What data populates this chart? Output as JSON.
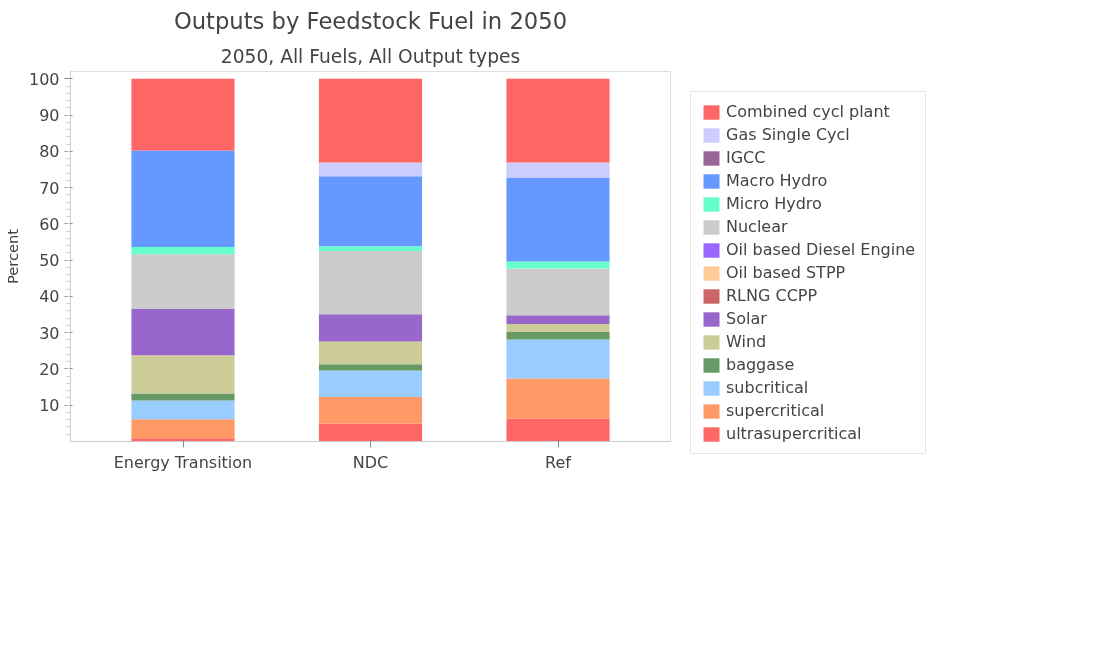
{
  "chart_data": {
    "type": "bar",
    "title": "Outputs by Feedstock Fuel in 2050",
    "subtitle": "2050, All Fuels, All Output types",
    "ylabel": "Percent",
    "categories": [
      "Energy Transition",
      "NDC",
      "Ref"
    ],
    "stacked": true,
    "ylim": [
      0,
      102
    ],
    "yticks": [
      10,
      20,
      30,
      40,
      50,
      60,
      70,
      80,
      90,
      100
    ],
    "grid": false,
    "legend": "right",
    "series": [
      {
        "name": "ultrasupercritical",
        "color": "#ff6666",
        "values": [
          0.9,
          4.9,
          6.3
        ]
      },
      {
        "name": "supercritical",
        "color": "#ff9966",
        "values": [
          5.2,
          7.4,
          11.1
        ]
      },
      {
        "name": "subcritical",
        "color": "#99ccff",
        "values": [
          5.2,
          7.3,
          10.7
        ]
      },
      {
        "name": "baggase",
        "color": "#669966",
        "values": [
          1.9,
          1.7,
          2.1
        ]
      },
      {
        "name": "Wind",
        "color": "#cccc99",
        "values": [
          10.6,
          6.3,
          2.2
        ]
      },
      {
        "name": "Solar",
        "color": "#9966cc",
        "values": [
          12.7,
          7.5,
          2.4
        ]
      },
      {
        "name": "RLNG CCPP",
        "color": "#cc6666",
        "values": [
          0,
          0,
          0
        ]
      },
      {
        "name": "Oil based STPP",
        "color": "#ffcc99",
        "values": [
          0,
          0,
          0
        ]
      },
      {
        "name": "Oil based Diesel Engine",
        "color": "#9966ff",
        "values": [
          0,
          0,
          0
        ]
      },
      {
        "name": "Nuclear",
        "color": "#cccccc",
        "values": [
          15.1,
          17.4,
          12.9
        ]
      },
      {
        "name": "Micro Hydro",
        "color": "#66ffcc",
        "values": [
          2.0,
          1.3,
          1.9
        ]
      },
      {
        "name": "Macro Hydro",
        "color": "#6699ff",
        "values": [
          26.6,
          19.3,
          23.2
        ]
      },
      {
        "name": "IGCC",
        "color": "#996699",
        "values": [
          0,
          0,
          0
        ]
      },
      {
        "name": "Gas Single Cycl",
        "color": "#ccccff",
        "values": [
          0,
          3.8,
          4.1
        ]
      },
      {
        "name": "Combined cycl plant",
        "color": "#ff6666",
        "values": [
          19.8,
          23.1,
          23.1
        ]
      }
    ]
  }
}
